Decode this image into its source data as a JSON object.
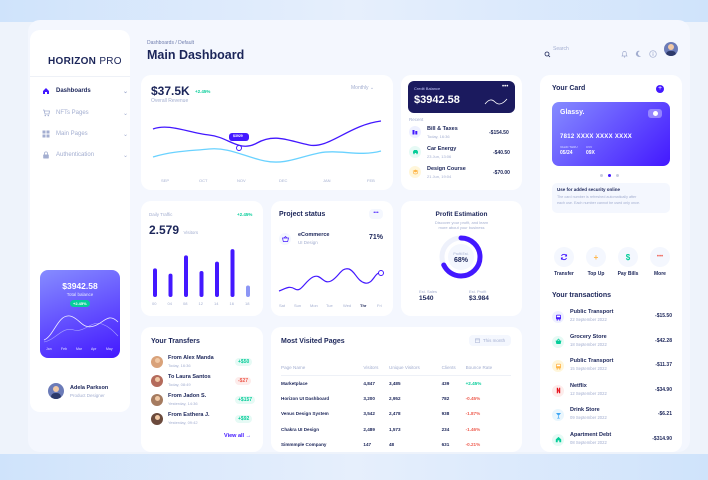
{
  "brand": {
    "bold": "HORIZON",
    "light": "PRO"
  },
  "sidebar": {
    "items": [
      {
        "label": "Dashboards",
        "active": true
      },
      {
        "label": "NFTs Pages"
      },
      {
        "label": "Main Pages"
      },
      {
        "label": "Authentication"
      }
    ],
    "promo": {
      "amount": "$3942.58",
      "label": "Total balance",
      "badge": "+2.45%",
      "months": [
        "Jan",
        "Feb",
        "Mar",
        "Apr",
        "May"
      ]
    },
    "user": {
      "name": "Adela Parkson",
      "role": "Product Designer"
    }
  },
  "header": {
    "breadcrumb": "Dashboards / Default",
    "title": "Main Dashboard",
    "search_placeholder": "Search"
  },
  "revenue": {
    "amount": "$37.5K",
    "change": "+2.45%",
    "label": "Overall Revenue",
    "period": "Monthly",
    "tooltip": "$3929",
    "months": [
      "SEP",
      "OCT",
      "NOV",
      "DEC",
      "JAN",
      "FEB"
    ]
  },
  "credit": {
    "label": "Credit Balance",
    "amount": "$3942.58",
    "recent_label": "Recent",
    "items": [
      {
        "name": "Bill & Taxes",
        "date": "Today, 16:36",
        "amount": "-$154.50"
      },
      {
        "name": "Car Energy",
        "date": "23 Jun, 13:06",
        "amount": "-$40.50"
      },
      {
        "name": "Design Course",
        "date": "21 Jun, 19:04",
        "amount": "-$70.00"
      }
    ]
  },
  "traffic": {
    "label": "Daily Traffic",
    "change": "+2.45%",
    "value": "2.579",
    "unit": "Visitors",
    "hours": [
      "00",
      "04",
      "08",
      "12",
      "14",
      "16",
      "18"
    ],
    "values": [
      0.55,
      0.45,
      0.8,
      0.5,
      0.68,
      0.92,
      0.22
    ]
  },
  "project": {
    "title": "Project status",
    "item_name": "eCommerce",
    "item_sub": "UI Design",
    "percent": "71%",
    "days": [
      "Sat",
      "Sun",
      "Mon",
      "Tue",
      "Wed",
      "Thr",
      "Fri"
    ]
  },
  "profit": {
    "title": "Profit Estimation",
    "desc1": "Discover your profit, and learn",
    "desc2": "more about your business",
    "ring_label": "Profit Est.",
    "ring_value": "68%",
    "ring_fraction": 0.68,
    "sales_label": "Est. Sales",
    "sales_value": "1540",
    "profit_label": "Est. Profit",
    "profit_value": "$3.984"
  },
  "transfers": {
    "title": "Your Transfers",
    "view_all": "View all",
    "items": [
      {
        "name": "From Alex Manda",
        "date": "Today, 16:36",
        "amount": "+$50",
        "pos": true
      },
      {
        "name": "To Laura Santos",
        "date": "Today, 08:49",
        "amount": "-$27",
        "pos": false
      },
      {
        "name": "From Jadon S.",
        "date": "Yesterday, 14:36",
        "amount": "+$157",
        "pos": true
      },
      {
        "name": "From Esthera J.",
        "date": "Yesterday, 09:42",
        "amount": "+$92",
        "pos": true
      }
    ]
  },
  "visited": {
    "title": "Most Visited Pages",
    "period": "This month",
    "columns": [
      "Page Name",
      "Visitors",
      "Unique Visitors",
      "Clients",
      "Bounce Rate"
    ],
    "rows": [
      {
        "page": "Marketplace",
        "visitors": "4,847",
        "unique": "3,485",
        "clients": "439",
        "bounce": "+2.45%",
        "pos": true
      },
      {
        "page": "Horizon UI Dashboard",
        "visitors": "3,200",
        "unique": "2,952",
        "clients": "782",
        "bounce": "-0.45%",
        "pos": false
      },
      {
        "page": "Venus Design System",
        "visitors": "3,542",
        "unique": "2,478",
        "clients": "938",
        "bounce": "-1.87%",
        "pos": false
      },
      {
        "page": "Chakra UI Design",
        "visitors": "2,489",
        "unique": "1,573",
        "clients": "234",
        "bounce": "-1.46%",
        "pos": false
      },
      {
        "page": "Simmmple Company",
        "visitors": "147",
        "unique": "48",
        "clients": "631",
        "bounce": "-0.21%",
        "pos": false
      }
    ]
  },
  "card": {
    "title": "Your Card",
    "brand": "Glassy.",
    "number": "7812 XXXX XXXX XXXX",
    "valid_label": "VALID THRU",
    "valid": "05/24",
    "cvv_label": "CVV",
    "cvv": "09X",
    "note_title": "Use for added security online",
    "note_text1": "The card number is refreshed automatically after",
    "note_text2": "each use. Each number cannot be used only once."
  },
  "actions": [
    {
      "label": "Transfer",
      "icon": "refresh-icon"
    },
    {
      "label": "Top Up",
      "icon": "plus-icon"
    },
    {
      "label": "Pay Bills",
      "icon": "dollar-icon"
    },
    {
      "label": "More",
      "icon": "more-icon"
    }
  ],
  "transactions": {
    "title": "Your transactions",
    "items": [
      {
        "name": "Public Transport",
        "date": "22 September 2022",
        "amount": "-$15.50"
      },
      {
        "name": "Grocery Store",
        "date": "18 September 2022",
        "amount": "-$42.28"
      },
      {
        "name": "Public Transport",
        "date": "15 September 2022",
        "amount": "-$11.37"
      },
      {
        "name": "Netflix",
        "date": "12 September 2022",
        "amount": "-$34.90"
      },
      {
        "name": "Drink Store",
        "date": "09 September 2022",
        "amount": "-$6.21"
      },
      {
        "name": "Apartment Debt",
        "date": "08 September 2022",
        "amount": "-$314.90"
      }
    ]
  },
  "colors": {
    "accent": "#4318ff",
    "navy": "#1b2559",
    "green": "#05cd99",
    "red": "#ee5d50"
  }
}
